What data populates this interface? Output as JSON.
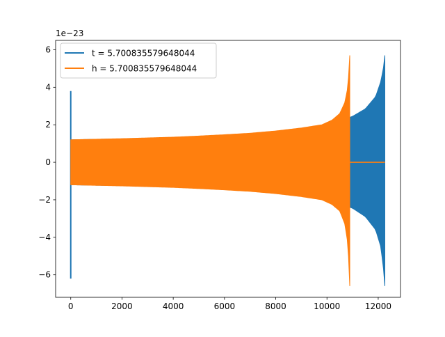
{
  "chart_data": {
    "type": "line",
    "offset_text": "1e−23",
    "xlim": [
      -590,
      12870
    ],
    "ylim": [
      -7.2,
      6.5
    ],
    "x_ticks": [
      {
        "value": 0,
        "label": "0"
      },
      {
        "value": 2000,
        "label": "2000"
      },
      {
        "value": 4000,
        "label": "4000"
      },
      {
        "value": 6000,
        "label": "6000"
      },
      {
        "value": 8000,
        "label": "8000"
      },
      {
        "value": 10000,
        "label": "10000"
      },
      {
        "value": 12000,
        "label": "12000"
      }
    ],
    "y_ticks": [
      {
        "value": -6,
        "label": "−6"
      },
      {
        "value": -4,
        "label": "−4"
      },
      {
        "value": -2,
        "label": "−2"
      },
      {
        "value": 0,
        "label": "0"
      },
      {
        "value": 2,
        "label": "2"
      },
      {
        "value": 4,
        "label": "4"
      },
      {
        "value": 6,
        "label": "6"
      }
    ],
    "legend_position": "upper-left",
    "series": [
      {
        "name": "t = 5.700835579648044",
        "color": "#1f77b4",
        "spike": {
          "x": 0,
          "max": 3.8,
          "min": -6.2
        },
        "upper_envelope": [
          [
            0,
            1.2
          ],
          [
            2000,
            1.25
          ],
          [
            4000,
            1.32
          ],
          [
            6000,
            1.42
          ],
          [
            8000,
            1.6
          ],
          [
            9000,
            1.75
          ],
          [
            10000,
            2.0
          ],
          [
            10500,
            2.2
          ],
          [
            11000,
            2.45
          ],
          [
            11500,
            2.85
          ],
          [
            11900,
            3.5
          ],
          [
            12100,
            4.3
          ],
          [
            12200,
            5.0
          ],
          [
            12260,
            5.7
          ]
        ],
        "lower_envelope": [
          [
            0,
            -1.2
          ],
          [
            2000,
            -1.25
          ],
          [
            4000,
            -1.32
          ],
          [
            6000,
            -1.42
          ],
          [
            8000,
            -1.6
          ],
          [
            9000,
            -1.75
          ],
          [
            10000,
            -2.0
          ],
          [
            10500,
            -2.2
          ],
          [
            11000,
            -2.45
          ],
          [
            11500,
            -2.9
          ],
          [
            11900,
            -3.6
          ],
          [
            12100,
            -4.5
          ],
          [
            12200,
            -5.6
          ],
          [
            12260,
            -6.6
          ]
        ],
        "x_end": 12260
      },
      {
        "name": "h = 5.700835579648044",
        "color": "#ff7f0e",
        "upper_envelope": [
          [
            0,
            1.2
          ],
          [
            1000,
            1.23
          ],
          [
            2000,
            1.26
          ],
          [
            3000,
            1.3
          ],
          [
            4000,
            1.34
          ],
          [
            5000,
            1.4
          ],
          [
            6000,
            1.47
          ],
          [
            7000,
            1.55
          ],
          [
            8000,
            1.67
          ],
          [
            9000,
            1.83
          ],
          [
            9800,
            2.0
          ],
          [
            10200,
            2.25
          ],
          [
            10500,
            2.6
          ],
          [
            10700,
            3.2
          ],
          [
            10800,
            3.9
          ],
          [
            10860,
            4.8
          ],
          [
            10890,
            5.7
          ]
        ],
        "lower_envelope": [
          [
            0,
            -1.2
          ],
          [
            1000,
            -1.23
          ],
          [
            2000,
            -1.26
          ],
          [
            3000,
            -1.3
          ],
          [
            4000,
            -1.34
          ],
          [
            5000,
            -1.4
          ],
          [
            6000,
            -1.47
          ],
          [
            7000,
            -1.55
          ],
          [
            8000,
            -1.67
          ],
          [
            9000,
            -1.83
          ],
          [
            9800,
            -2.0
          ],
          [
            10200,
            -2.25
          ],
          [
            10500,
            -2.6
          ],
          [
            10700,
            -3.3
          ],
          [
            10800,
            -4.2
          ],
          [
            10860,
            -5.4
          ],
          [
            10890,
            -6.6
          ]
        ],
        "x_end": 10890,
        "tail_value": 0,
        "tail_end": 12260
      }
    ]
  }
}
